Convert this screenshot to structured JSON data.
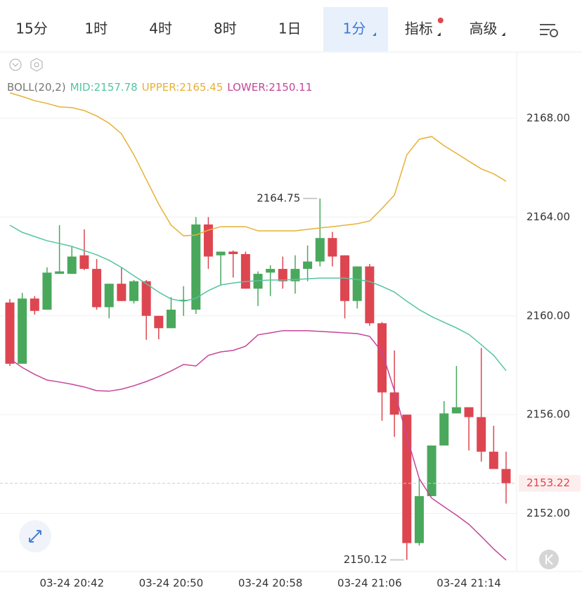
{
  "tabs": [
    {
      "label": "15分"
    },
    {
      "label": "1时"
    },
    {
      "label": "4时"
    },
    {
      "label": "8时"
    },
    {
      "label": "1日"
    },
    {
      "label": "1分",
      "active": true
    },
    {
      "label": "指标"
    },
    {
      "label": "高级"
    }
  ],
  "chart_data": {
    "type": "candlestick",
    "indicator": "BOLL(20,2)",
    "categories": [
      null,
      null,
      null,
      null,
      null,
      "03-24 20:42",
      null,
      null,
      null,
      null,
      null,
      null,
      null,
      "03-24 20:50",
      null,
      null,
      null,
      null,
      null,
      null,
      null,
      "03-24 20:58",
      null,
      null,
      null,
      null,
      null,
      null,
      null,
      "03-24 21:06",
      null,
      null,
      null,
      null,
      null,
      null,
      null,
      "03-24 21:14",
      null,
      null,
      null
    ],
    "open": [
      2160.54,
      2158.06,
      2160.7,
      2160.25,
      2161.7,
      2161.7,
      2162.45,
      2161.9,
      2160.35,
      2161.3,
      2160.6,
      2161.4,
      2160.0,
      2159.5,
      2160.6,
      2160.25,
      2163.7,
      2162.45,
      2162.6,
      2162.5,
      2161.1,
      2161.75,
      2161.9,
      2161.4,
      2161.9,
      2162.2,
      2163.15,
      2162.45,
      2160.6,
      2162.0,
      2159.7,
      2156.9,
      2156.0,
      2150.8,
      2152.7,
      2154.75,
      2156.05,
      2156.3,
      2155.9,
      2154.5,
      2153.8
    ],
    "high": [
      2160.68,
      2160.93,
      2160.8,
      2161.96,
      2163.67,
      2162.8,
      2163.5,
      2162.3,
      2161.3,
      2161.96,
      2161.45,
      2161.45,
      2160.0,
      2160.76,
      2161.2,
      2164.0,
      2164.0,
      2162.6,
      2162.65,
      2162.6,
      2161.8,
      2162.05,
      2162.4,
      2162.45,
      2162.85,
      2164.75,
      2163.4,
      2162.45,
      2162.0,
      2162.1,
      2159.75,
      2158.6,
      2156.0,
      2153.4,
      2154.75,
      2156.55,
      2157.97,
      2156.3,
      2158.7,
      2155.55,
      2154.5
    ],
    "low": [
      2157.97,
      2158.06,
      2160.05,
      2160.25,
      2161.7,
      2161.7,
      2161.85,
      2160.25,
      2159.9,
      2160.6,
      2160.5,
      2159.03,
      2159.05,
      2159.5,
      2160.0,
      2160.08,
      2161.9,
      2161.25,
      2161.55,
      2161.1,
      2160.4,
      2160.8,
      2161.1,
      2160.9,
      2161.4,
      2162.0,
      2162.0,
      2159.9,
      2160.3,
      2159.6,
      2155.75,
      2155.1,
      2150.12,
      2150.7,
      2152.7,
      2154.75,
      2156.05,
      2154.55,
      2154.1,
      2153.8,
      2152.4
    ],
    "close": [
      2158.06,
      2160.7,
      2160.2,
      2161.75,
      2161.8,
      2162.4,
      2161.9,
      2160.35,
      2161.3,
      2160.6,
      2161.4,
      2160.0,
      2159.5,
      2160.25,
      2160.65,
      2163.7,
      2162.4,
      2162.6,
      2162.5,
      2161.1,
      2161.7,
      2161.9,
      2161.4,
      2161.9,
      2162.2,
      2163.15,
      2162.4,
      2160.6,
      2162.0,
      2159.7,
      2156.9,
      2156.0,
      2150.8,
      2152.7,
      2154.75,
      2156.05,
      2156.3,
      2155.9,
      2154.5,
      2153.8,
      2153.22
    ],
    "up_color": "#4aa85c",
    "down_color": "#dd4650",
    "bands": [
      {
        "name": "MID:",
        "color": "#55c4a2",
        "values": [
          2163.67,
          2163.38,
          2163.21,
          2163.04,
          2162.93,
          2162.81,
          2162.64,
          2162.47,
          2162.25,
          2161.96,
          2161.62,
          2161.3,
          2160.96,
          2160.68,
          2160.59,
          2160.71,
          2161.02,
          2161.25,
          2161.33,
          2161.39,
          2161.42,
          2161.45,
          2161.45,
          2161.47,
          2161.5,
          2161.53,
          2161.53,
          2161.53,
          2161.47,
          2161.39,
          2161.19,
          2160.96,
          2160.59,
          2160.25,
          2159.97,
          2159.74,
          2159.51,
          2159.25,
          2158.83,
          2158.4,
          2157.78
        ]
      },
      {
        "name": "UPPER:",
        "color": "#e6b136",
        "values": [
          2169.03,
          2168.88,
          2168.71,
          2168.6,
          2168.46,
          2168.43,
          2168.31,
          2168.09,
          2167.8,
          2167.37,
          2166.52,
          2165.52,
          2164.52,
          2163.67,
          2163.24,
          2163.27,
          2163.47,
          2163.61,
          2163.61,
          2163.61,
          2163.44,
          2163.44,
          2163.44,
          2163.44,
          2163.5,
          2163.56,
          2163.61,
          2163.67,
          2163.73,
          2163.84,
          2164.35,
          2164.89,
          2166.52,
          2167.15,
          2167.26,
          2166.89,
          2166.58,
          2166.26,
          2165.95,
          2165.75,
          2165.45
        ]
      },
      {
        "name": "LOWER:",
        "color": "#c4469a",
        "values": [
          2158.26,
          2157.91,
          2157.63,
          2157.4,
          2157.32,
          2157.23,
          2157.12,
          2156.97,
          2156.95,
          2157.03,
          2157.17,
          2157.34,
          2157.54,
          2157.77,
          2158.03,
          2157.97,
          2158.4,
          2158.54,
          2158.6,
          2158.77,
          2159.23,
          2159.31,
          2159.4,
          2159.4,
          2159.4,
          2159.37,
          2159.34,
          2159.31,
          2159.28,
          2159.17,
          2158.54,
          2156.97,
          2155.12,
          2153.41,
          2152.62,
          2152.27,
          2151.93,
          2151.56,
          2151.07,
          2150.56,
          2150.11
        ]
      }
    ],
    "ylim": [
      2149.65,
      2170.65
    ],
    "yticks": [
      {
        "value": 2152,
        "label": "2152.00"
      },
      {
        "value": 2156,
        "label": "2156.00"
      },
      {
        "value": 2160,
        "label": "2160.00"
      },
      {
        "value": 2164,
        "label": "2164.00"
      },
      {
        "value": 2168,
        "label": "2168.00"
      }
    ],
    "grid": true
  }
}
